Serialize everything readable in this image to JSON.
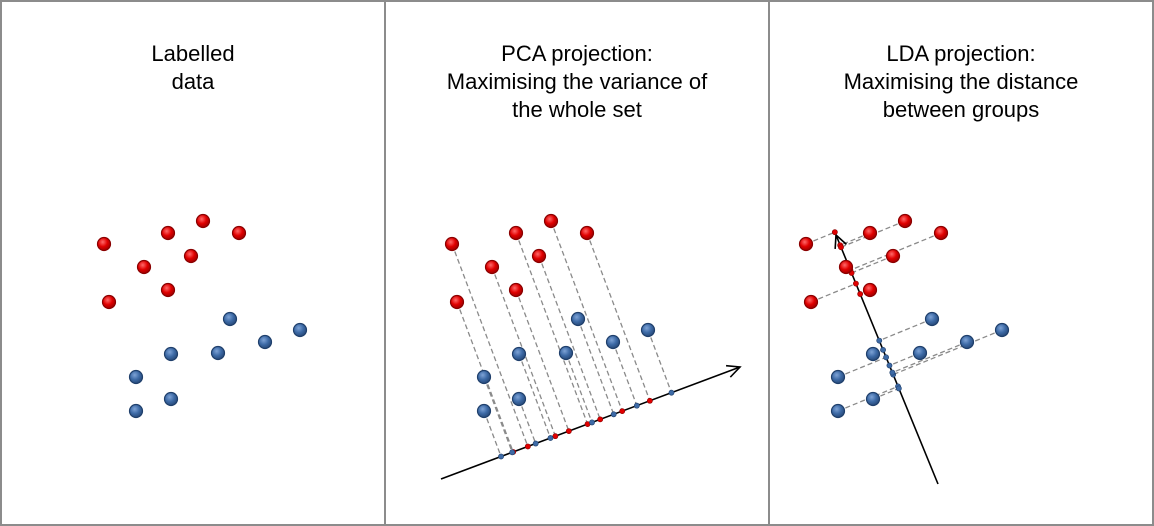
{
  "panels": [
    {
      "title_lines": [
        "Labelled",
        "data"
      ]
    },
    {
      "title_lines": [
        "PCA projection:",
        "Maximising the variance of",
        "the whole set"
      ]
    },
    {
      "title_lines": [
        "LDA projection:",
        "Maximising the distance",
        "between groups"
      ]
    }
  ],
  "colors": {
    "red_fill": "#e00000",
    "red_stroke": "#8a0000",
    "blue_fill": "#3d6aa6",
    "blue_stroke": "#1f3f6b",
    "axis": "#000000",
    "projection_line": "#8a8a8a",
    "panel_border": "#8c8c8c"
  },
  "chart_data": {
    "type": "scatter",
    "series": [
      {
        "color": "red",
        "points": [
          [
            104,
            244
          ],
          [
            168,
            233
          ],
          [
            203,
            221
          ],
          [
            239,
            233
          ],
          [
            144,
            267
          ],
          [
            191,
            256
          ],
          [
            109,
            302
          ],
          [
            168,
            290
          ]
        ]
      },
      {
        "color": "blue",
        "points": [
          [
            230,
            319
          ],
          [
            300,
            330
          ],
          [
            171,
            354
          ],
          [
            218,
            353
          ],
          [
            265,
            342
          ],
          [
            136,
            377
          ],
          [
            136,
            411
          ],
          [
            171,
            399
          ]
        ]
      }
    ]
  }
}
